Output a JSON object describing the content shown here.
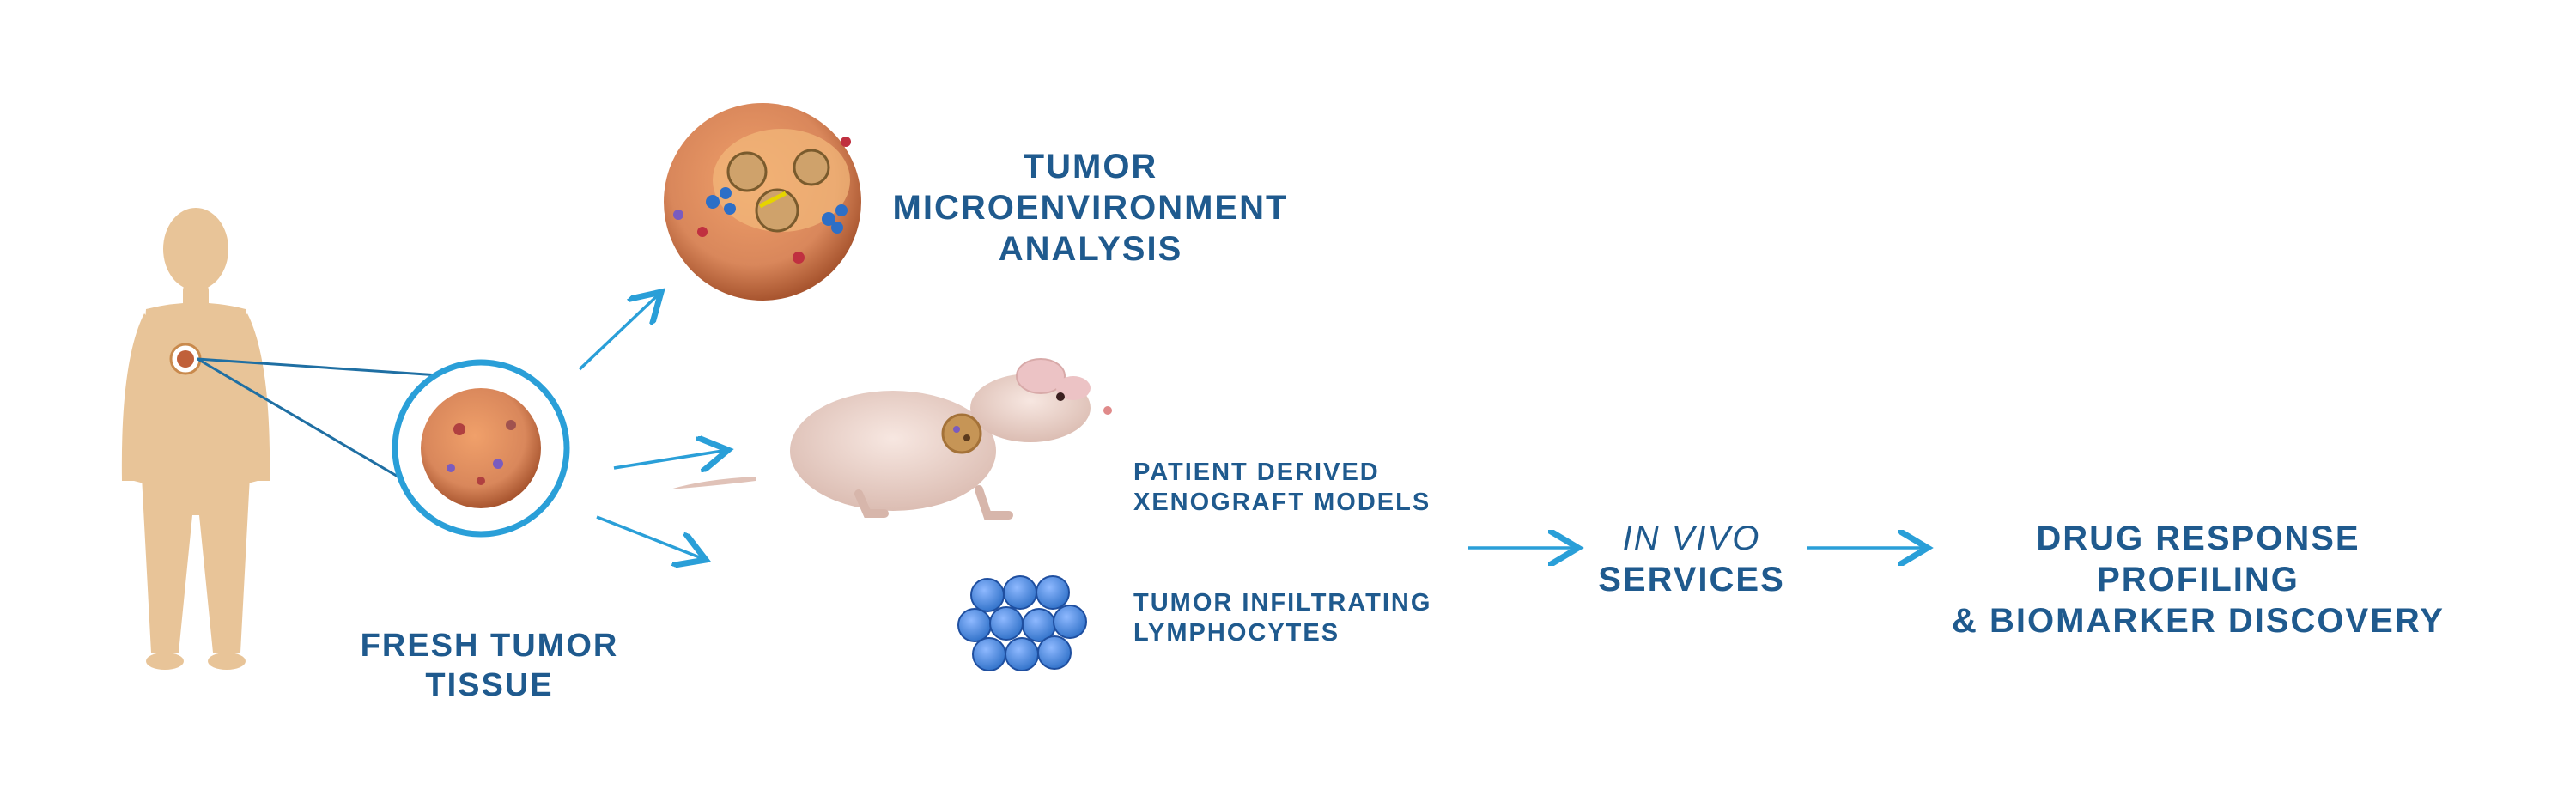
{
  "colors": {
    "text": "#1f5a8e",
    "arrow": "#2a9fd8",
    "skin": "#e8c498",
    "tumor": "#d9875b",
    "tumor_dark": "#b8603a",
    "lymphocyte": "#2d6fc7",
    "mouse": "#efd9d2"
  },
  "labels": {
    "tme": [
      "TUMOR",
      "MICROENVIRONMENT",
      "ANALYSIS"
    ],
    "fresh": [
      "FRESH TUMOR",
      "TISSUE"
    ],
    "pdx": [
      "PATIENT DERIVED",
      "XENOGRAFT MODELS"
    ],
    "til": [
      "TUMOR INFILTRATING",
      "LYMPHOCYTES"
    ],
    "invivo": [
      "IN VIVO",
      "SERVICES"
    ],
    "drug": [
      "DRUG RESPONSE PROFILING",
      "& BIOMARKER DISCOVERY"
    ]
  },
  "icons": {
    "body": "human-body-silhouette-icon",
    "tumor": "tumor-cell-icon",
    "mouse": "nude-mouse-icon",
    "lymphocytes": "lymphocyte-cluster-icon"
  }
}
